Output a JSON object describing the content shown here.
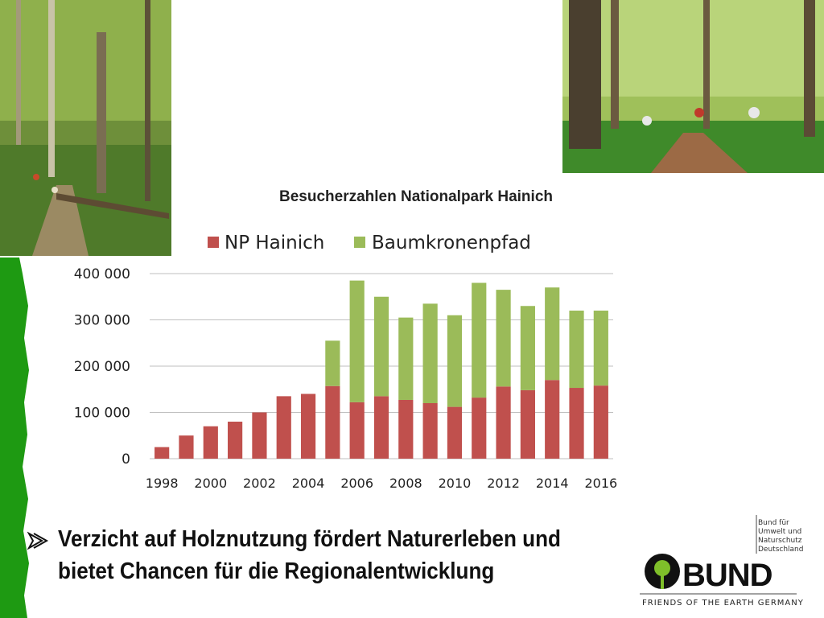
{
  "slide": {
    "bullet_text": "Verzicht auf Holznutzung fördert Naturerleben und bietet Chancen für die Regionalentwicklung"
  },
  "logo": {
    "word": "BUND",
    "tagline": [
      "Bund für",
      "Umwelt und",
      "Naturschutz",
      "Deutschland"
    ],
    "subtitle": "FRIENDS OF THE EARTH GERMANY"
  },
  "colors": {
    "edge_green": "#1e9a12",
    "np_hainich": "#c0504d",
    "baumkronenpfad": "#9bbb59",
    "grid": "#bfbfbf"
  },
  "chart_data": {
    "type": "bar",
    "stacked": true,
    "title": "Besucherzahlen Nationalpark Hainich",
    "legend_position": "top",
    "categories": [
      "1998",
      "1999",
      "2000",
      "2001",
      "2002",
      "2003",
      "2004",
      "2005",
      "2006",
      "2007",
      "2008",
      "2009",
      "2010",
      "2011",
      "2012",
      "2013",
      "2014",
      "2015",
      "2016"
    ],
    "x_tick_labels": [
      "1998",
      "2000",
      "2002",
      "2004",
      "2006",
      "2008",
      "2010",
      "2012",
      "2014",
      "2016"
    ],
    "y_tick_labels": [
      "0",
      "100 000",
      "200 000",
      "300 000",
      "400 000"
    ],
    "y_ticks": [
      0,
      100000,
      200000,
      300000,
      400000
    ],
    "ylim": [
      0,
      400000
    ],
    "grid": true,
    "series": [
      {
        "name": "NP Hainich",
        "values": [
          25000,
          50000,
          70000,
          80000,
          100000,
          135000,
          140000,
          157000,
          122000,
          135000,
          127000,
          120000,
          112000,
          132000,
          156000,
          148000,
          170000,
          153000,
          158000
        ]
      },
      {
        "name": "Baumkronenpfad",
        "values": [
          0,
          0,
          0,
          0,
          0,
          0,
          0,
          98000,
          263000,
          215000,
          178000,
          215000,
          198000,
          248000,
          209000,
          182000,
          200000,
          167000,
          162000
        ]
      }
    ]
  }
}
